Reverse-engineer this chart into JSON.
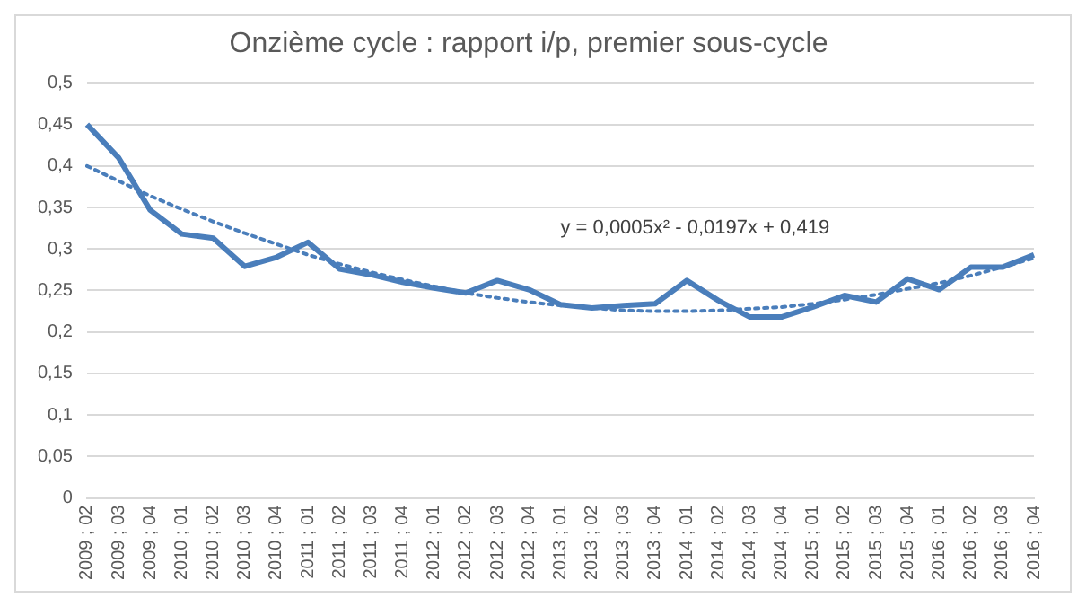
{
  "chart_data": {
    "type": "line",
    "title": "Onzième cycle : rapport i/p, premier sous-cycle",
    "categories": [
      "2009 ; 02",
      "2009 ; 03",
      "2009 ; 04",
      "2010 ; 01",
      "2010 ; 02",
      "2010 ; 03",
      "2010 ; 04",
      "2011 ; 01",
      "2011 ; 02",
      "2011 ; 03",
      "2011 ; 04",
      "2012 ; 01",
      "2012 ; 02",
      "2012 ; 03",
      "2012 ; 04",
      "2013 ; 01",
      "2013 ; 02",
      "2013 ; 03",
      "2013 ; 04",
      "2014 ; 01",
      "2014 ; 02",
      "2014 ; 03",
      "2014 ; 04",
      "2015 ; 01",
      "2015 ; 02",
      "2015 ; 03",
      "2015 ; 04",
      "2016 ; 01",
      "2016 ; 02",
      "2016 ; 03",
      "2016 ; 04"
    ],
    "series": [
      {
        "color": "#4a7ebb",
        "line_style": "solid",
        "values": [
          0.45,
          0.41,
          0.347,
          0.318,
          0.313,
          0.279,
          0.29,
          0.308,
          0.276,
          0.269,
          0.26,
          0.253,
          0.247,
          0.262,
          0.251,
          0.233,
          0.229,
          0.232,
          0.234,
          0.262,
          0.238,
          0.218,
          0.218,
          0.23,
          0.244,
          0.236,
          0.264,
          0.251,
          0.278,
          0.278,
          0.293
        ]
      },
      {
        "color": "#4a7ebb",
        "line_style": "dotted",
        "values": [
          0.4,
          0.382,
          0.364,
          0.348,
          0.333,
          0.319,
          0.306,
          0.293,
          0.282,
          0.272,
          0.263,
          0.255,
          0.247,
          0.241,
          0.236,
          0.232,
          0.229,
          0.226,
          0.225,
          0.225,
          0.226,
          0.228,
          0.23,
          0.234,
          0.239,
          0.245,
          0.252,
          0.259,
          0.268,
          0.278,
          0.289
        ]
      }
    ],
    "ylim": [
      0,
      0.5
    ],
    "yticks": [
      0,
      {
        "value": 0.05,
        "label": "0,05"
      },
      {
        "value": 0.1,
        "label": "0,1"
      },
      {
        "value": 0.15,
        "label": "0,15"
      },
      {
        "value": 0.2,
        "label": "0,2"
      },
      {
        "value": 0.25,
        "label": "0,25"
      },
      {
        "value": 0.3,
        "label": "0,3"
      },
      {
        "value": 0.35,
        "label": "0,35"
      },
      {
        "value": 0.4,
        "label": "0,4"
      },
      {
        "value": 0.45,
        "label": "0,45"
      },
      {
        "value": 0.5,
        "label": "0,5"
      }
    ],
    "grid": "y",
    "legend": false,
    "marker": "none",
    "annotations": [
      "y = 0,0005x² - 0,0197x + 0,419"
    ]
  }
}
